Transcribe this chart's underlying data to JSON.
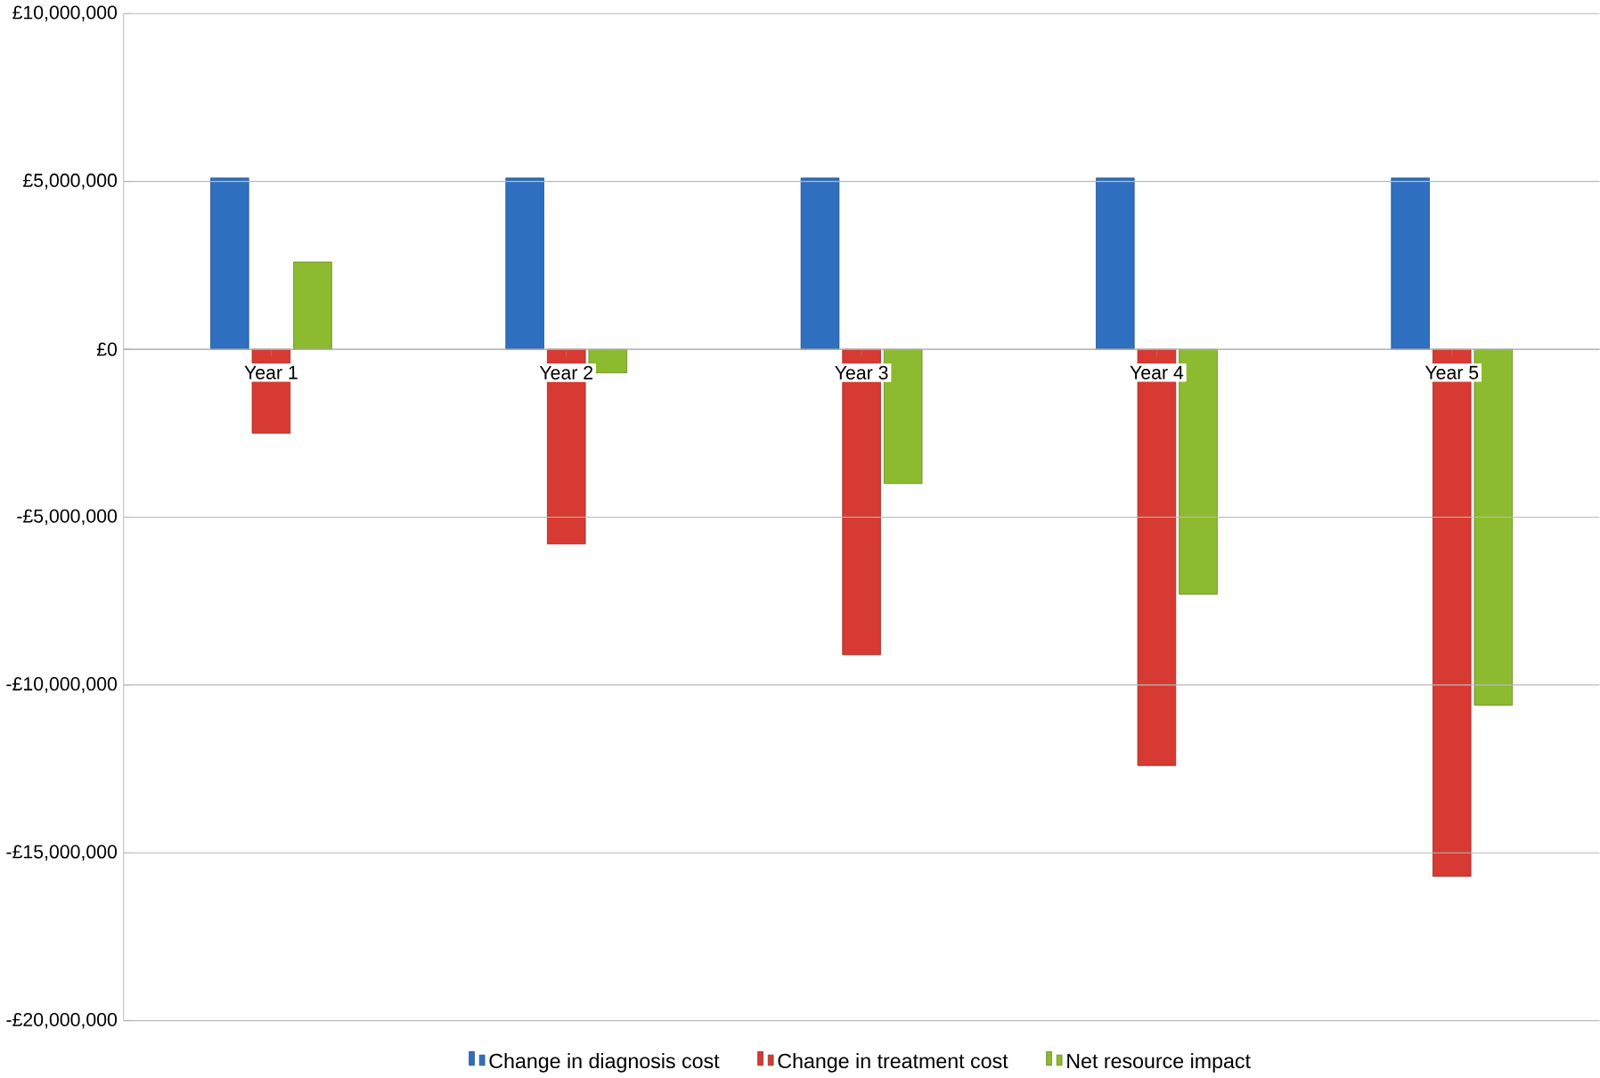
{
  "chart_data": {
    "type": "bar",
    "categories": [
      "Year 1",
      "Year 2",
      "Year 3",
      "Year 4",
      "Year 5"
    ],
    "series": [
      {
        "name": "Change in diagnosis cost",
        "color": "#2f6fbf",
        "values": [
          5100000,
          5100000,
          5100000,
          5100000,
          5100000
        ]
      },
      {
        "name": "Change in treatment cost",
        "color": "#d63a32",
        "values": [
          -2500000,
          -5800000,
          -9100000,
          -12400000,
          -15700000
        ]
      },
      {
        "name": "Net resource impact",
        "color": "#8dbb2f",
        "values": [
          2600000,
          -700000,
          -4000000,
          -7300000,
          -10600000
        ]
      }
    ],
    "ylim": [
      -20000000,
      10000000
    ],
    "yticks": [
      {
        "value": -20000000,
        "label": "-£20,000,000"
      },
      {
        "value": -15000000,
        "label": "-£15,000,000"
      },
      {
        "value": -10000000,
        "label": "-£10,000,000"
      },
      {
        "value": -5000000,
        "label": "-£5,000,000"
      },
      {
        "value": 0,
        "label": "£0"
      },
      {
        "value": 5000000,
        "label": "£5,000,000"
      },
      {
        "value": 10000000,
        "label": "£10,000,000"
      }
    ],
    "grid": "y",
    "legend": "bottom"
  }
}
